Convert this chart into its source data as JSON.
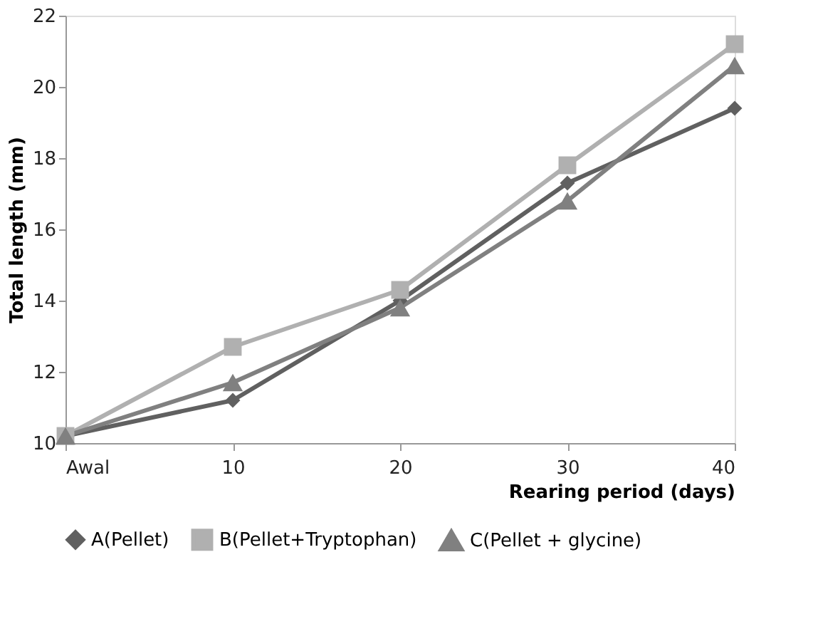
{
  "chart_data": {
    "type": "line",
    "xlabel": "Rearing period  (days)",
    "ylabel": "Total length (mm)",
    "categories": [
      "Awal",
      "10",
      "20",
      "30",
      "40"
    ],
    "series": [
      {
        "name": "A(Pellet)",
        "color": "#606060",
        "marker": "diamond",
        "values": [
          10.2,
          11.2,
          14.0,
          17.3,
          19.4
        ]
      },
      {
        "name": "B(Pellet+Tryptophan)",
        "color": "#b0b0b0",
        "marker": "square",
        "values": [
          10.2,
          12.7,
          14.3,
          17.8,
          21.2
        ]
      },
      {
        "name": "C(Pellet + glycine)",
        "color": "#808080",
        "marker": "triangle",
        "values": [
          10.2,
          11.7,
          13.8,
          16.8,
          20.6
        ]
      }
    ],
    "ylim": [
      10,
      22
    ],
    "yticks": [
      10,
      12,
      14,
      16,
      18,
      20,
      22
    ],
    "grid": false,
    "legend": "bottom",
    "line_style": "solid"
  }
}
